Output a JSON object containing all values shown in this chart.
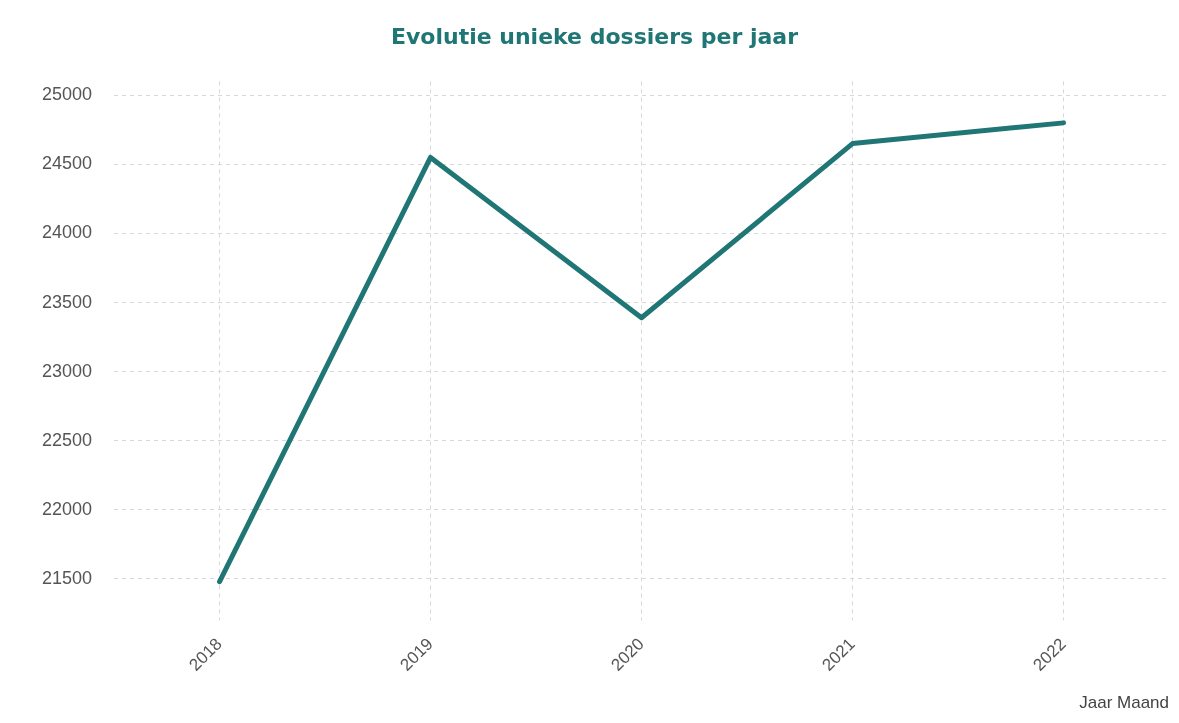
{
  "chart_data": {
    "type": "line",
    "title": "Evolutie unieke dossiers per jaar",
    "xlabel": "Jaar Maand",
    "categories": [
      "2018",
      "2019",
      "2020",
      "2021",
      "2022"
    ],
    "series": [
      {
        "color": "#1f7674",
        "values": [
          21480,
          24550,
          23390,
          24650,
          24800
        ]
      }
    ],
    "ylim": [
      21200,
      25100
    ],
    "yticks": [
      21500,
      22000,
      22500,
      23000,
      23500,
      24000,
      24500,
      25000
    ],
    "grid": true,
    "legend": false,
    "marker": "none",
    "line_style": "solid"
  }
}
